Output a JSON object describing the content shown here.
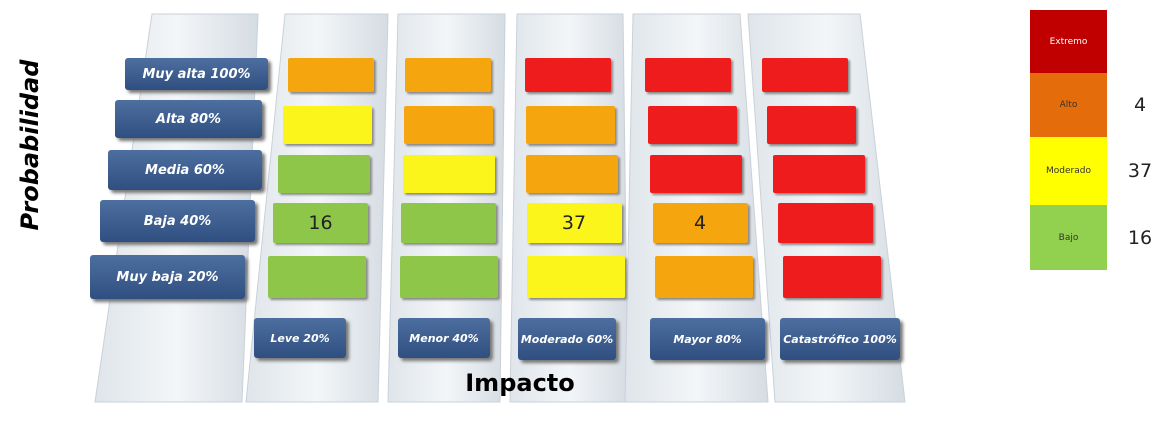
{
  "y_axis_label": "Probabilidad",
  "x_axis_label": "Impacto",
  "rows": [
    "Muy alta 100%",
    "Alta 80%",
    "Media 60%",
    "Baja 40%",
    "Muy baja 20%"
  ],
  "columns": [
    "Leve 20%",
    "Menor 40%",
    "Moderado 60%",
    "Mayor 80%",
    "Catastrófico 100%"
  ],
  "cells": [
    [
      {
        "color": "#f5a60f"
      },
      {
        "color": "#f5a60f"
      },
      {
        "color": "#ee1c1c"
      },
      {
        "color": "#ee1c1c"
      },
      {
        "color": "#ee1c1c"
      }
    ],
    [
      {
        "color": "#fbf51c"
      },
      {
        "color": "#f5a60f"
      },
      {
        "color": "#f5a60f"
      },
      {
        "color": "#ee1c1c"
      },
      {
        "color": "#ee1c1c"
      }
    ],
    [
      {
        "color": "#8ec64a"
      },
      {
        "color": "#fbf51c"
      },
      {
        "color": "#f5a60f"
      },
      {
        "color": "#ee1c1c"
      },
      {
        "color": "#ee1c1c"
      }
    ],
    [
      {
        "color": "#8ec64a",
        "value": "16"
      },
      {
        "color": "#8ec64a"
      },
      {
        "color": "#fbf51c",
        "value": "37"
      },
      {
        "color": "#f5a60f",
        "value": "4"
      },
      {
        "color": "#ee1c1c"
      }
    ],
    [
      {
        "color": "#8ec64a"
      },
      {
        "color": "#8ec64a"
      },
      {
        "color": "#fbf51c"
      },
      {
        "color": "#f5a60f"
      },
      {
        "color": "#ee1c1c"
      }
    ]
  ],
  "legend": [
    {
      "label": "Extremo",
      "color": "#c00000"
    },
    {
      "label": "Alto",
      "color": "#e46c0a",
      "count": "4"
    },
    {
      "label": "Moderado",
      "color": "#ffff00",
      "count": "37"
    },
    {
      "label": "Bajo",
      "color": "#92d050",
      "count": "16"
    }
  ]
}
